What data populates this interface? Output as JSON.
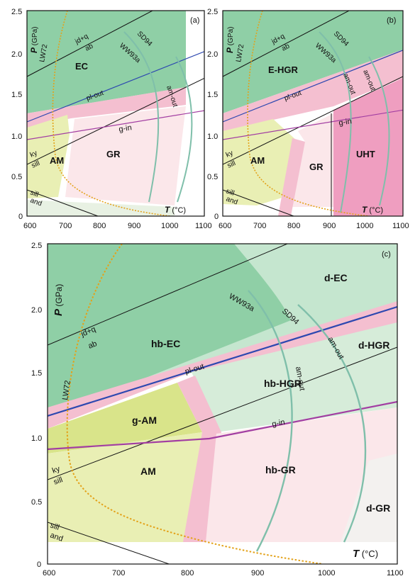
{
  "colors": {
    "eclogite_green": "#8fcfa6",
    "eclogite_light": "#c5e6cf",
    "hgr_green": "#d6ecd9",
    "amph_yellow": "#e9efb4",
    "gam_yellow": "#d9e48a",
    "granulite_pink": "#fbe7ea",
    "boundary_pink": "#f4bfd0",
    "uht_pink": "#ef9ec0",
    "pl_out_blue": "#2d48b0",
    "g_in_purple": "#a23ea2",
    "am_out_teal": "#7fbfaa",
    "lw72_orange": "#e3a21a"
  },
  "axes": {
    "x_unit": "T (°C)",
    "y_unit": "P (GPa)",
    "x_ticks": [
      "600",
      "700",
      "800",
      "900",
      "1000",
      "1100"
    ],
    "y_ticks": [
      "0",
      "0.5",
      "1.0",
      "1.5",
      "2.0",
      "2.5"
    ]
  },
  "panels": {
    "a": {
      "letter": "(a)",
      "fields": [
        "EC",
        "AM",
        "GR"
      ],
      "curves": {
        "lw72": "LW72",
        "sd94": "SD94",
        "ww93a": "WW93a",
        "am_out": "am-out",
        "pl_out": "pl-out",
        "g_in": "g-in",
        "jdq": "jd+q",
        "ab": "ab",
        "ky": "ky",
        "sill": "sill",
        "sill2": "sill",
        "and": "and"
      }
    },
    "b": {
      "letter": "(b)",
      "fields": [
        "E-HGR",
        "AM",
        "GR",
        "UHT"
      ],
      "curves": {
        "lw72": "LW72",
        "sd94": "SD94",
        "ww93a": "WW93a",
        "am_out": "am-out",
        "am_out2": "am-out",
        "pl_out": "pl-out",
        "g_in": "g-in",
        "jdq": "jd+q",
        "ab": "ab",
        "ky": "ky",
        "sill": "sill",
        "sill2": "sill",
        "and": "and"
      }
    },
    "c": {
      "letter": "(c)",
      "fields": [
        "d-EC",
        "hb-EC",
        "d-HGR",
        "hb-HGR",
        "g-AM",
        "AM",
        "hb-GR",
        "d-GR"
      ],
      "curves": {
        "lw72": "LW72",
        "sd94": "SD94",
        "ww93a": "WW93a",
        "am_out": "am-out",
        "am_out2": "am-out",
        "pl_out": "pl-out",
        "g_in": "g-in",
        "jdq": "jd+q",
        "ab": "ab",
        "ky": "ky",
        "sill": "sill",
        "sill2": "sill",
        "and": "and"
      }
    }
  }
}
